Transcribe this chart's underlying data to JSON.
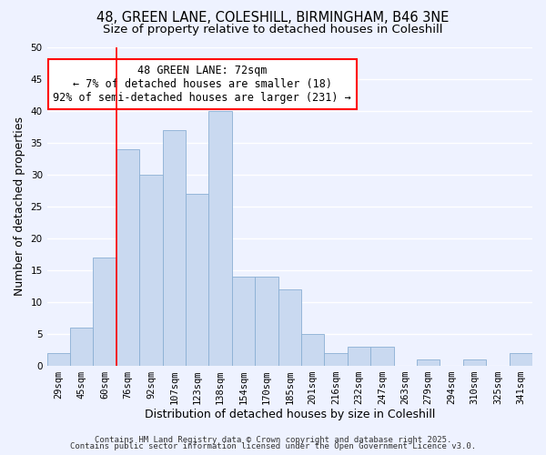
{
  "title_line1": "48, GREEN LANE, COLESHILL, BIRMINGHAM, B46 3NE",
  "title_line2": "Size of property relative to detached houses in Coleshill",
  "xlabel": "Distribution of detached houses by size in Coleshill",
  "ylabel": "Number of detached properties",
  "bin_labels": [
    "29sqm",
    "45sqm",
    "60sqm",
    "76sqm",
    "92sqm",
    "107sqm",
    "123sqm",
    "138sqm",
    "154sqm",
    "170sqm",
    "185sqm",
    "201sqm",
    "216sqm",
    "232sqm",
    "247sqm",
    "263sqm",
    "279sqm",
    "294sqm",
    "310sqm",
    "325sqm",
    "341sqm"
  ],
  "bar_heights": [
    2,
    6,
    17,
    34,
    30,
    37,
    27,
    40,
    14,
    14,
    12,
    5,
    2,
    3,
    3,
    0,
    1,
    0,
    1,
    0,
    2
  ],
  "bar_color": "#c9d9f0",
  "bar_edge_color": "#8aafd4",
  "ylim": [
    0,
    50
  ],
  "yticks": [
    0,
    5,
    10,
    15,
    20,
    25,
    30,
    35,
    40,
    45,
    50
  ],
  "vline_x_pos": 2.5,
  "annotation_title": "48 GREEN LANE: 72sqm",
  "annotation_line1": "← 7% of detached houses are smaller (18)",
  "annotation_line2": "92% of semi-detached houses are larger (231) →",
  "footer_line1": "Contains HM Land Registry data © Crown copyright and database right 2025.",
  "footer_line2": "Contains public sector information licensed under the Open Government Licence v3.0.",
  "background_color": "#eef2ff",
  "grid_color": "#ffffff",
  "title_fontsize": 10.5,
  "subtitle_fontsize": 9.5,
  "axis_label_fontsize": 9,
  "tick_fontsize": 7.5,
  "annotation_fontsize": 8.5,
  "footer_fontsize": 6.5
}
